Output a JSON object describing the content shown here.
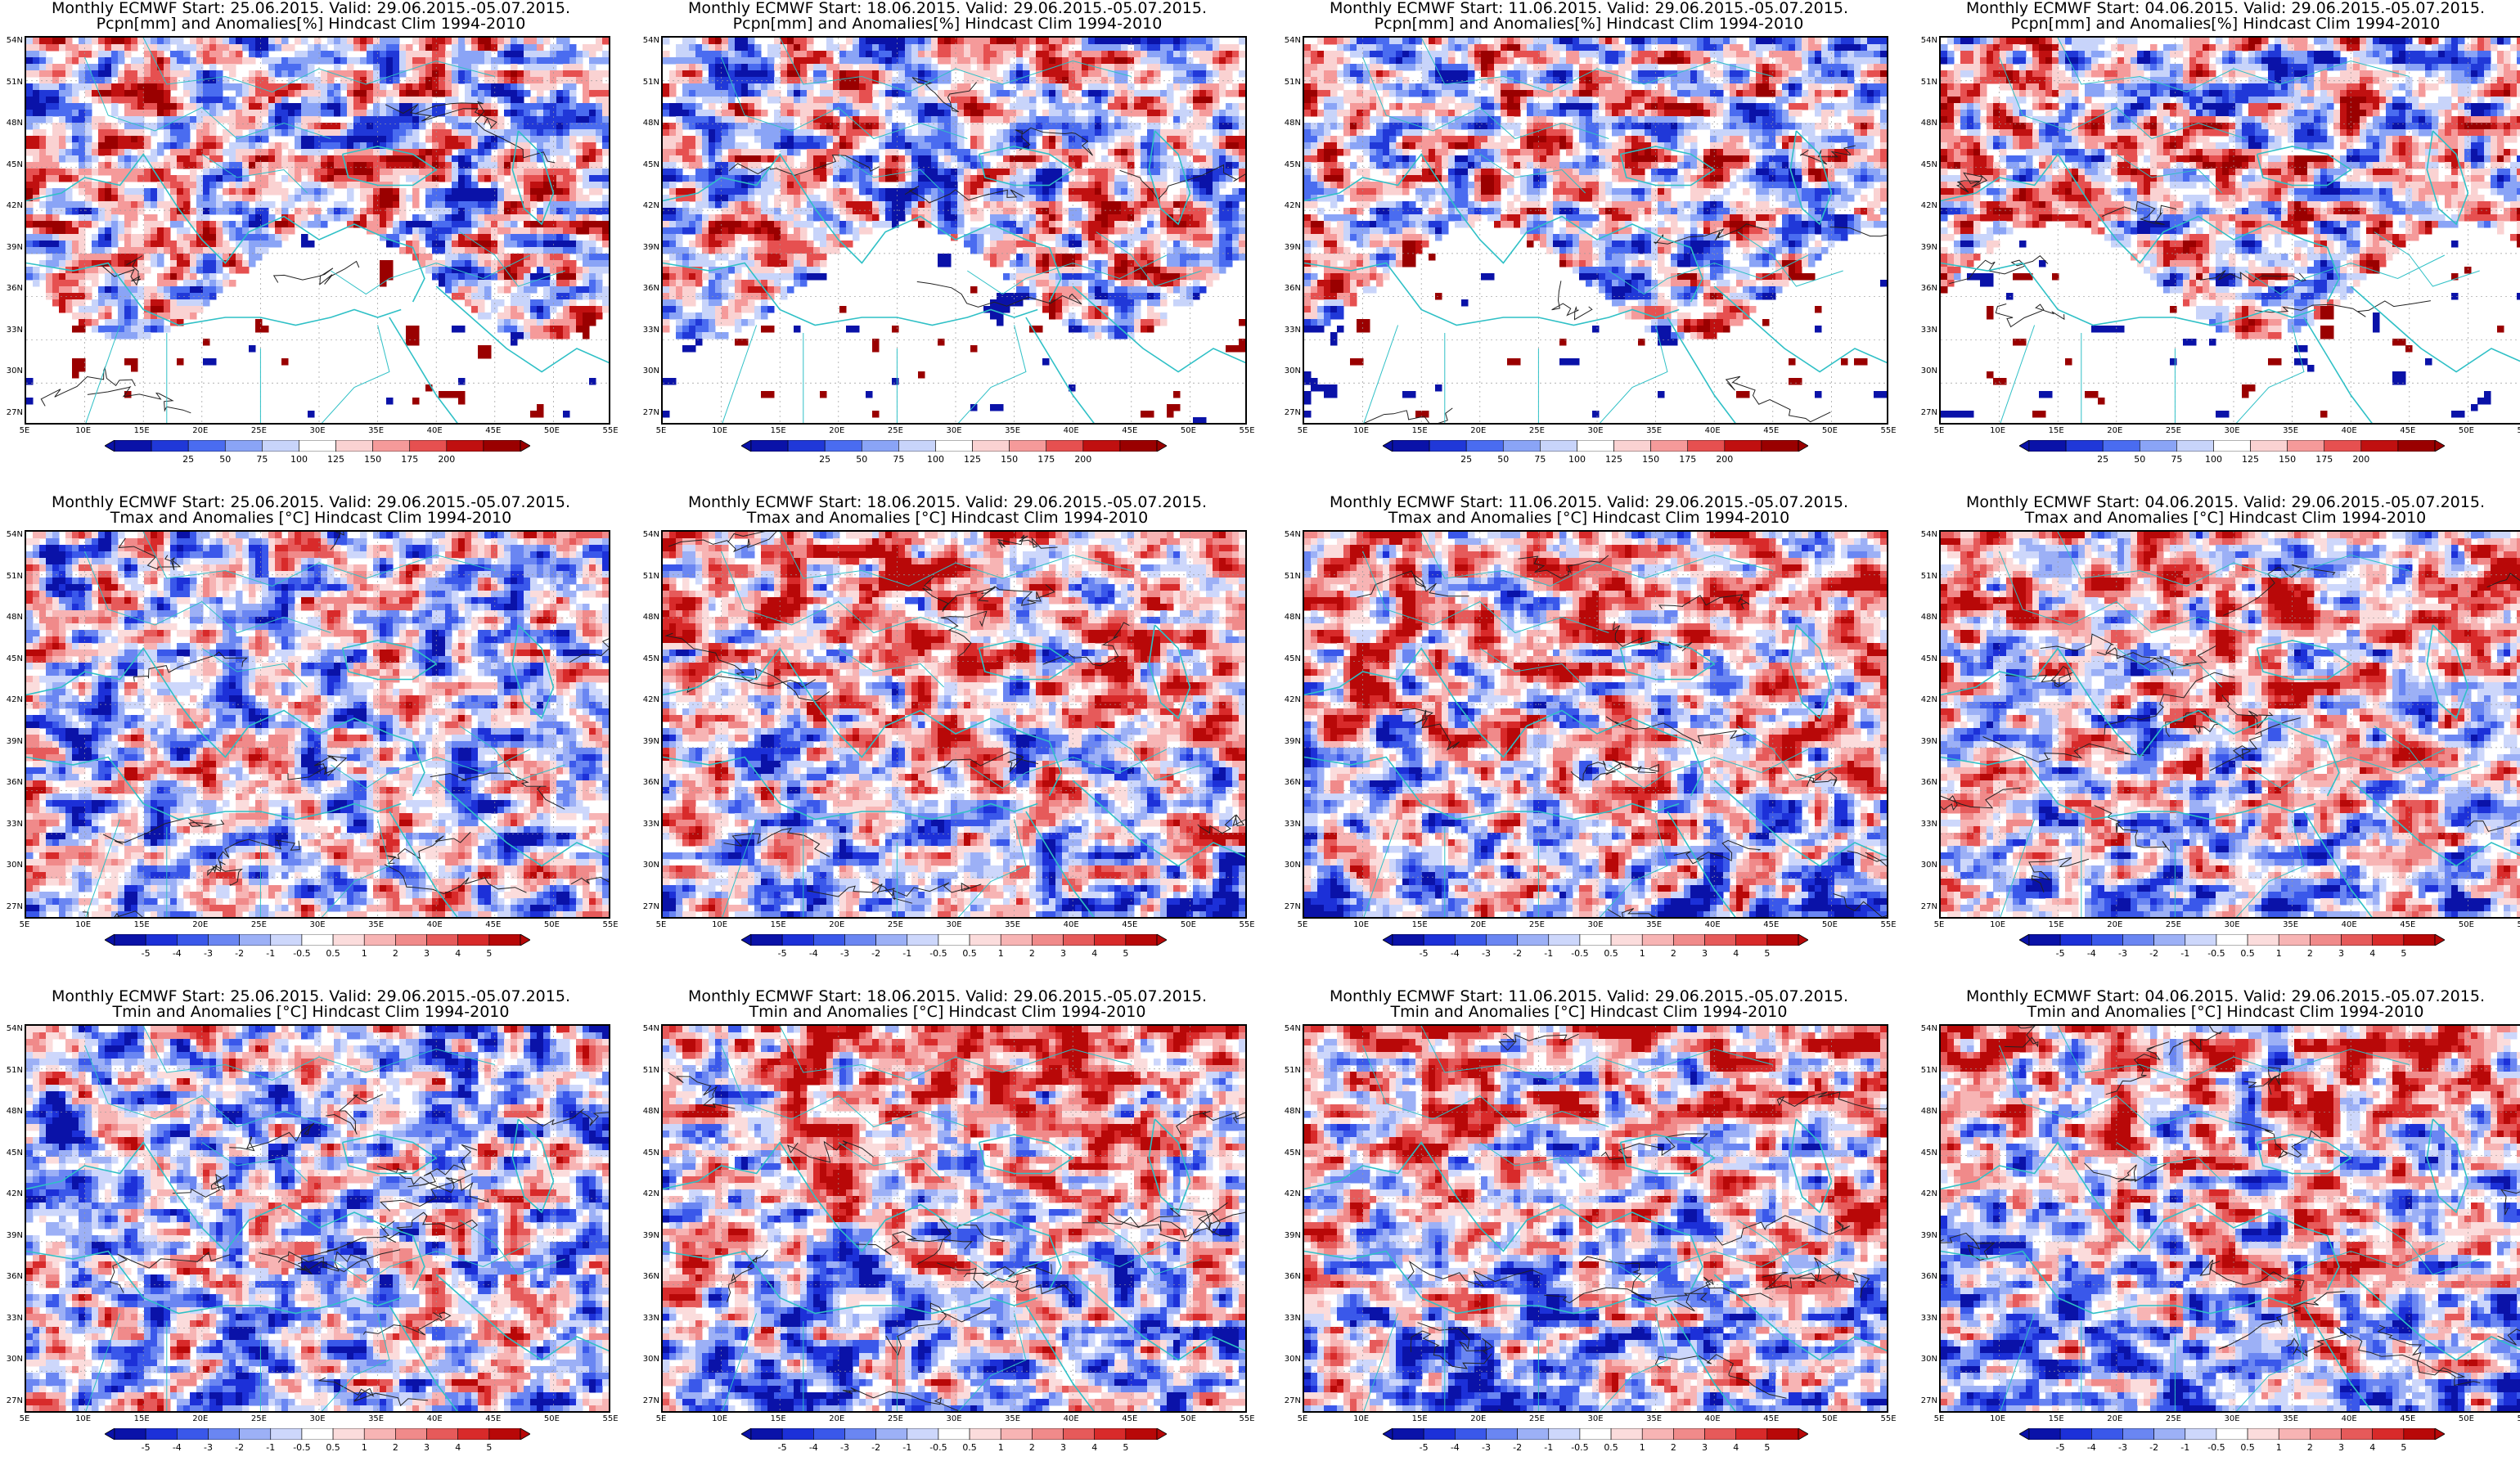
{
  "panels": [
    {
      "title1": "Monthly ECMWF Start: 25.06.2015. Valid: 29.06.2015.-05.07.2015.",
      "title2": "Pcpn[mm] and Anomalies[%] Hindcast Clim 1994-2010",
      "variable": "pcpn",
      "start": "25.06.2015."
    },
    {
      "title1": "Monthly ECMWF Start: 18.06.2015. Valid: 29.06.2015.-05.07.2015.",
      "title2": "Pcpn[mm] and Anomalies[%] Hindcast Clim 1994-2010",
      "variable": "pcpn",
      "start": "18.06.2015."
    },
    {
      "title1": "Monthly ECMWF Start: 11.06.2015. Valid: 29.06.2015.-05.07.2015.",
      "title2": "Pcpn[mm] and Anomalies[%] Hindcast Clim 1994-2010",
      "variable": "pcpn",
      "start": "11.06.2015."
    },
    {
      "title1": "Monthly ECMWF Start: 04.06.2015. Valid: 29.06.2015.-05.07.2015.",
      "title2": "Pcpn[mm] and Anomalies[%] Hindcast Clim 1994-2010",
      "variable": "pcpn",
      "start": "04.06.2015."
    },
    {
      "title1": "Monthly ECMWF Start: 25.06.2015. Valid: 29.06.2015.-05.07.2015.",
      "title2": "Tmax and Anomalies [°C] Hindcast Clim 1994-2010",
      "variable": "tmax",
      "start": "25.06.2015."
    },
    {
      "title1": "Monthly ECMWF Start: 18.06.2015. Valid: 29.06.2015.-05.07.2015.",
      "title2": "Tmax and Anomalies [°C] Hindcast Clim 1994-2010",
      "variable": "tmax",
      "start": "18.06.2015."
    },
    {
      "title1": "Monthly ECMWF Start: 11.06.2015. Valid: 29.06.2015.-05.07.2015.",
      "title2": "Tmax and Anomalies [°C] Hindcast Clim 1994-2010",
      "variable": "tmax",
      "start": "11.06.2015."
    },
    {
      "title1": "Monthly ECMWF Start: 04.06.2015. Valid: 29.06.2015.-05.07.2015.",
      "title2": "Tmax and Anomalies [°C] Hindcast Clim 1994-2010",
      "variable": "tmax",
      "start": "04.06.2015."
    },
    {
      "title1": "Monthly ECMWF Start: 25.06.2015. Valid: 29.06.2015.-05.07.2015.",
      "title2": "Tmin and Anomalies [°C] Hindcast Clim 1994-2010",
      "variable": "tmin",
      "start": "25.06.2015."
    },
    {
      "title1": "Monthly ECMWF Start: 18.06.2015. Valid: 29.06.2015.-05.07.2015.",
      "title2": "Tmin and Anomalies [°C] Hindcast Clim 1994-2010",
      "variable": "tmin",
      "start": "18.06.2015."
    },
    {
      "title1": "Monthly ECMWF Start: 11.06.2015. Valid: 29.06.2015.-05.07.2015.",
      "title2": "Tmin and Anomalies [°C] Hindcast Clim 1994-2010",
      "variable": "tmin",
      "start": "11.06.2015."
    },
    {
      "title1": "Monthly ECMWF Start: 04.06.2015. Valid: 29.06.2015.-05.07.2015.",
      "title2": "Tmin and Anomalies [°C] Hindcast Clim 1994-2010",
      "variable": "tmin",
      "start": "04.06.2015."
    }
  ],
  "lat_labels": [
    "54N",
    "51N",
    "48N",
    "45N",
    "42N",
    "39N",
    "36N",
    "33N",
    "30N",
    "27N"
  ],
  "lon_labels": [
    "5E",
    "10E",
    "15E",
    "20E",
    "25E",
    "30E",
    "35E",
    "40E",
    "45E",
    "50E",
    "55E"
  ],
  "colorbars": {
    "pcpn": {
      "labels": [
        "25",
        "50",
        "75",
        "100",
        "125",
        "150",
        "175",
        "200"
      ],
      "colors": [
        "#0a12a8",
        "#2038d8",
        "#4a6cf0",
        "#8aa4f6",
        "#c8d4fa",
        "#ffffff",
        "#fad2d2",
        "#f59a9a",
        "#e65050",
        "#c01010",
        "#9a0000"
      ]
    },
    "temp": {
      "labels": [
        "-5",
        "-4",
        "-3",
        "-2",
        "-1",
        "-0.5",
        "0.5",
        "1",
        "2",
        "3",
        "4",
        "5"
      ],
      "colors": [
        "#0a12a8",
        "#1c30d8",
        "#3a58ea",
        "#6a86f2",
        "#9cb0f6",
        "#cdd7fb",
        "#ffffff",
        "#fbdcdc",
        "#f7b4b4",
        "#f08a8a",
        "#e65a5a",
        "#d82a2a",
        "#b80808"
      ]
    }
  }
}
